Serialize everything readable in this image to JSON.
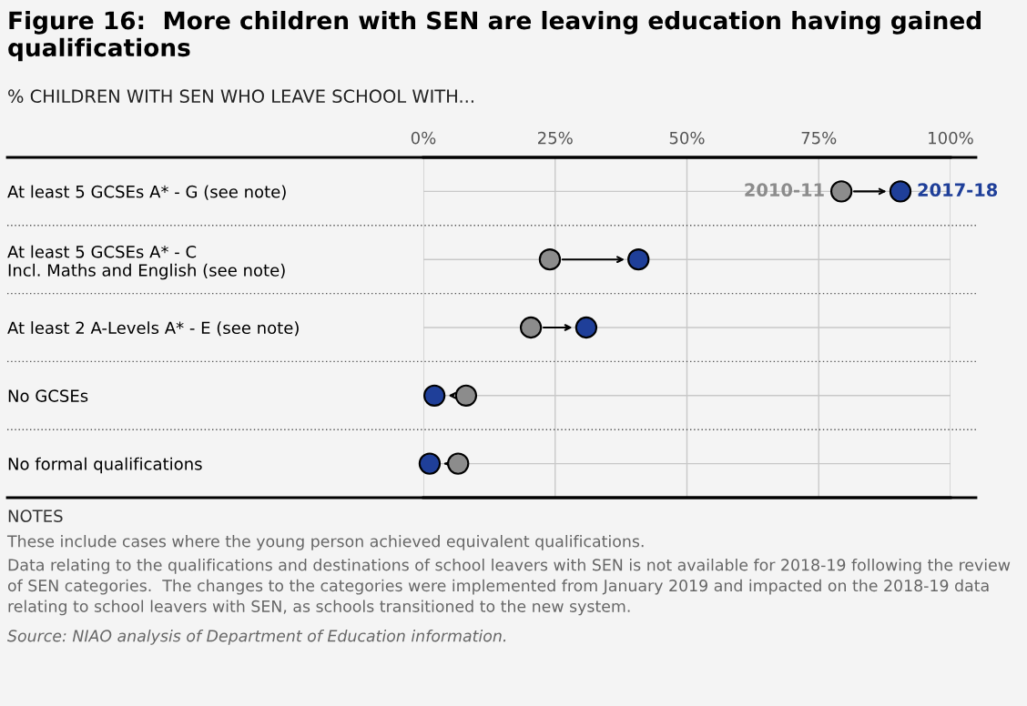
{
  "chart_data": {
    "type": "scatter",
    "orientation": "horizontal",
    "title": "Figure 16:  More children with SEN are leaving education having gained qualifications",
    "subtitle": "% CHILDREN WITH SEN WHO LEAVE SCHOOL WITH...",
    "categories": [
      "At least 5 GCSEs A* - G (see note)",
      "At least 5 GCSEs A* - C\nIncl. Maths and English (see note)",
      "At least 2 A-Levels A* - E (see note)",
      "No GCSEs",
      "No formal qualifications"
    ],
    "series": [
      {
        "name": "2010-11",
        "color": "#8c8c8c",
        "values": [
          79.3,
          24.0,
          20.4,
          8.1,
          6.6
        ]
      },
      {
        "name": "2017-18",
        "color": "#1f3f99",
        "values": [
          90.5,
          40.8,
          30.9,
          2.1,
          1.2
        ]
      }
    ],
    "xlim": [
      0,
      100
    ],
    "xticks": [
      {
        "value": 0,
        "label": "0%"
      },
      {
        "value": 25,
        "label": "25%"
      },
      {
        "value": 50,
        "label": "50%"
      },
      {
        "value": 75,
        "label": "75%"
      },
      {
        "value": 100,
        "label": "100%"
      }
    ],
    "grid": true,
    "legend": "top right",
    "marker": "circle",
    "annotations": [
      "NOTES",
      "These include cases where the young person achieved equivalent qualifications.",
      "Data relating to the qualifications and destinations of school leavers with SEN is not available for 2018-19 following the review of SEN categories.  The changes to the categories were implemented from January 2019 and impacted on the 2018-19 data relating to school leavers with SEN, as schools transitioned to the new system.",
      "Source: NIAO analysis of Department of Education information."
    ]
  }
}
